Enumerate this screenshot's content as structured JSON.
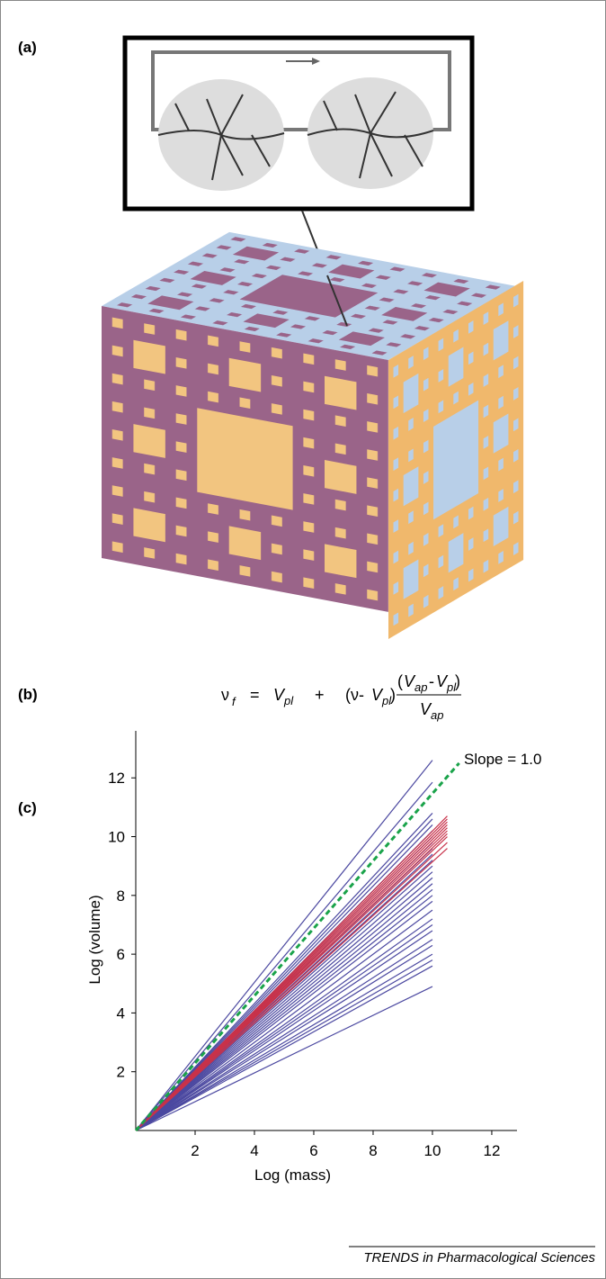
{
  "panels": {
    "a": "(a)",
    "b": "(b)",
    "c": "(c)"
  },
  "formula": {
    "parts": [
      "ν",
      "f",
      "=",
      "V",
      "pl",
      "+",
      "(ν-",
      "V",
      "pl",
      ")",
      "(",
      "V",
      "ap",
      "-",
      "V",
      "pl",
      ")",
      "V",
      "ap"
    ]
  },
  "chart_data": {
    "type": "line",
    "xlabel": "Log (mass)",
    "ylabel": "Log (volume)",
    "annotation": "Slope = 1.0",
    "xlim": [
      0,
      12.85
    ],
    "ylim": [
      0,
      13.6
    ],
    "xticks": [
      2,
      4,
      6,
      8,
      10,
      12
    ],
    "yticks": [
      2,
      4,
      6,
      8,
      10,
      12
    ],
    "origin": [
      0,
      0
    ],
    "series": [
      {
        "color": "#4b48a0",
        "x_end": 10,
        "end_values": [
          12.6,
          11.85,
          10.8,
          10.6,
          10.4,
          10.2,
          10.0,
          9.8,
          9.6,
          9.4,
          9.2,
          9.0,
          8.8,
          8.6,
          8.4,
          8.2,
          8.0,
          7.8,
          7.5,
          7.2,
          7.0,
          6.8,
          6.5,
          6.3,
          6.0,
          5.8,
          5.6,
          4.9
        ]
      },
      {
        "color": "#c8324a",
        "x_end": 10.5,
        "end_values": [
          10.7,
          10.6,
          10.5,
          10.4,
          10.3,
          10.2,
          10.1,
          10.0,
          9.8,
          9.6
        ]
      },
      {
        "color": "#1aa34a",
        "dashed": true,
        "x_end": 10.9,
        "end_values": [
          12.5
        ]
      }
    ]
  },
  "footer": "TRENDS in Pharmacological Sciences"
}
